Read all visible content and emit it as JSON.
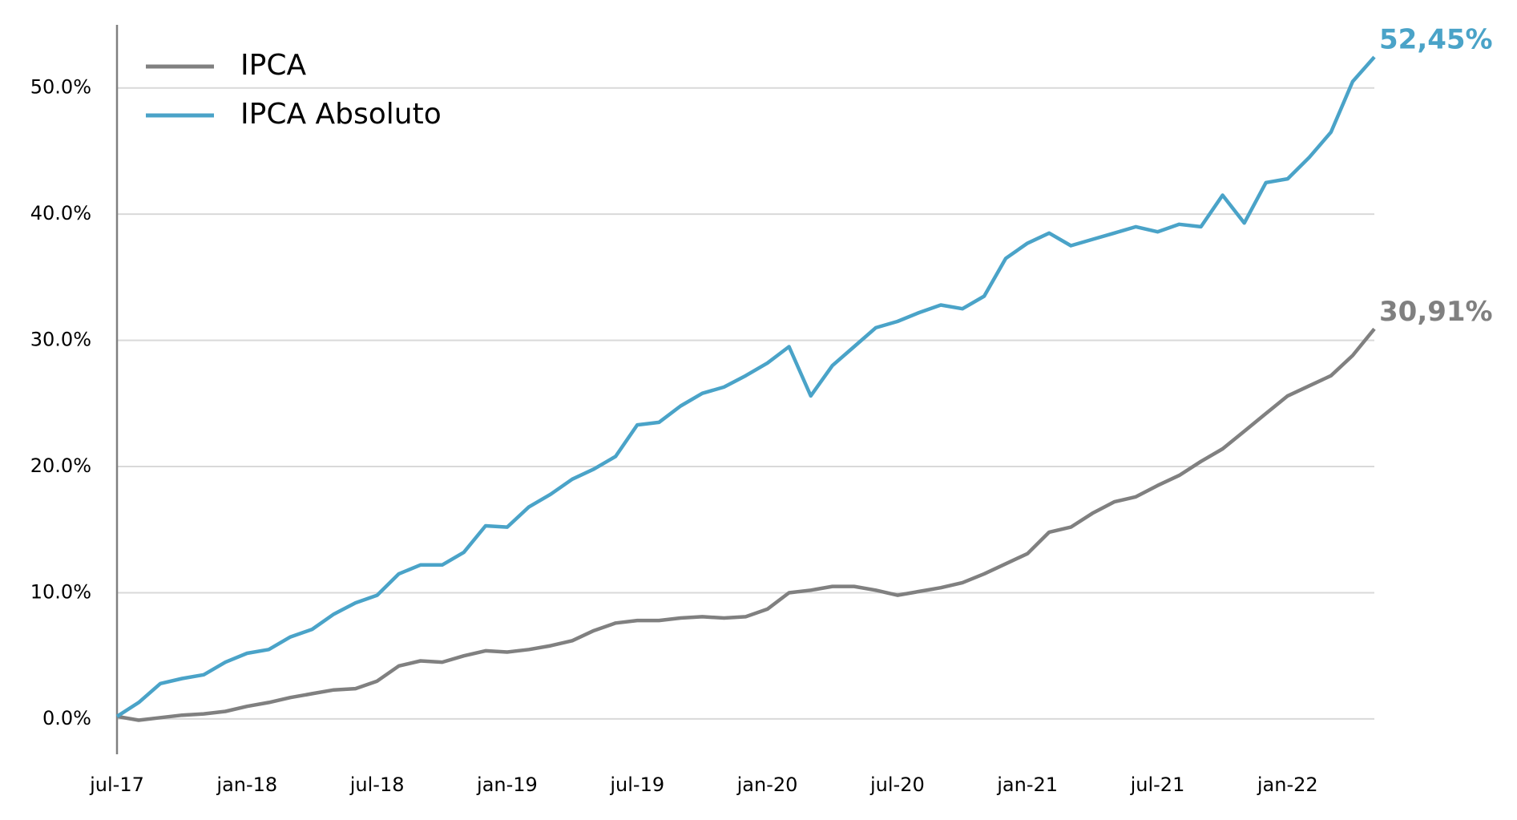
{
  "chart_data": {
    "type": "line",
    "categories": [
      "jul-17",
      null,
      null,
      null,
      null,
      null,
      "jan-18",
      null,
      null,
      null,
      null,
      null,
      "jul-18",
      null,
      null,
      null,
      null,
      null,
      "jan-19",
      null,
      null,
      null,
      null,
      null,
      "jul-19",
      null,
      null,
      null,
      null,
      null,
      "jan-20",
      null,
      null,
      null,
      null,
      null,
      "jul-20",
      null,
      null,
      null,
      null,
      null,
      "jan-21",
      null,
      null,
      null,
      null,
      null,
      "jul-21",
      null,
      null,
      null,
      null,
      null,
      "jan-22",
      null,
      null,
      null,
      null
    ],
    "series": [
      {
        "name": "IPCA",
        "color": "#808080",
        "end_label": "30,91%",
        "values": [
          0.2,
          -0.1,
          0.1,
          0.3,
          0.4,
          0.6,
          1.0,
          1.3,
          1.7,
          2.0,
          2.3,
          2.4,
          3.0,
          4.2,
          4.6,
          4.5,
          5.0,
          5.4,
          5.3,
          5.5,
          5.8,
          6.2,
          7.0,
          7.6,
          7.8,
          7.8,
          8.0,
          8.1,
          8.0,
          8.1,
          8.7,
          10.0,
          10.2,
          10.5,
          10.5,
          10.2,
          9.8,
          10.1,
          10.4,
          10.8,
          11.5,
          12.3,
          13.1,
          14.8,
          15.2,
          16.3,
          17.2,
          17.6,
          18.5,
          19.3,
          20.4,
          21.4,
          22.8,
          24.2,
          25.6,
          26.4,
          27.2,
          28.8,
          30.91
        ]
      },
      {
        "name": "IPCA Absoluto",
        "color": "#4aa3c8",
        "end_label": "52,45%",
        "values": [
          0.2,
          1.3,
          2.8,
          3.2,
          3.5,
          4.5,
          5.2,
          5.5,
          6.5,
          7.1,
          8.3,
          9.2,
          9.8,
          11.5,
          12.2,
          12.2,
          13.2,
          15.3,
          15.2,
          16.8,
          17.8,
          19.0,
          19.8,
          20.8,
          23.3,
          23.5,
          24.8,
          25.8,
          26.3,
          27.2,
          28.2,
          29.5,
          25.6,
          28.0,
          29.5,
          31.0,
          31.5,
          32.2,
          32.8,
          32.5,
          33.5,
          36.5,
          37.7,
          38.5,
          37.5,
          38.0,
          38.5,
          39.0,
          38.6,
          39.2,
          39.0,
          41.5,
          39.3,
          42.5,
          42.8,
          44.5,
          46.5,
          50.5,
          52.45
        ]
      }
    ],
    "ylim": [
      -2.8,
      55
    ],
    "yticks": [
      {
        "value": 0,
        "label": "0.0%"
      },
      {
        "value": 10,
        "label": "10.0%"
      },
      {
        "value": 20,
        "label": "20.0%"
      },
      {
        "value": 30,
        "label": "30.0%"
      },
      {
        "value": 40,
        "label": "40.0%"
      },
      {
        "value": 50,
        "label": "50.0%"
      }
    ],
    "grid": true,
    "legend": "top-left"
  }
}
